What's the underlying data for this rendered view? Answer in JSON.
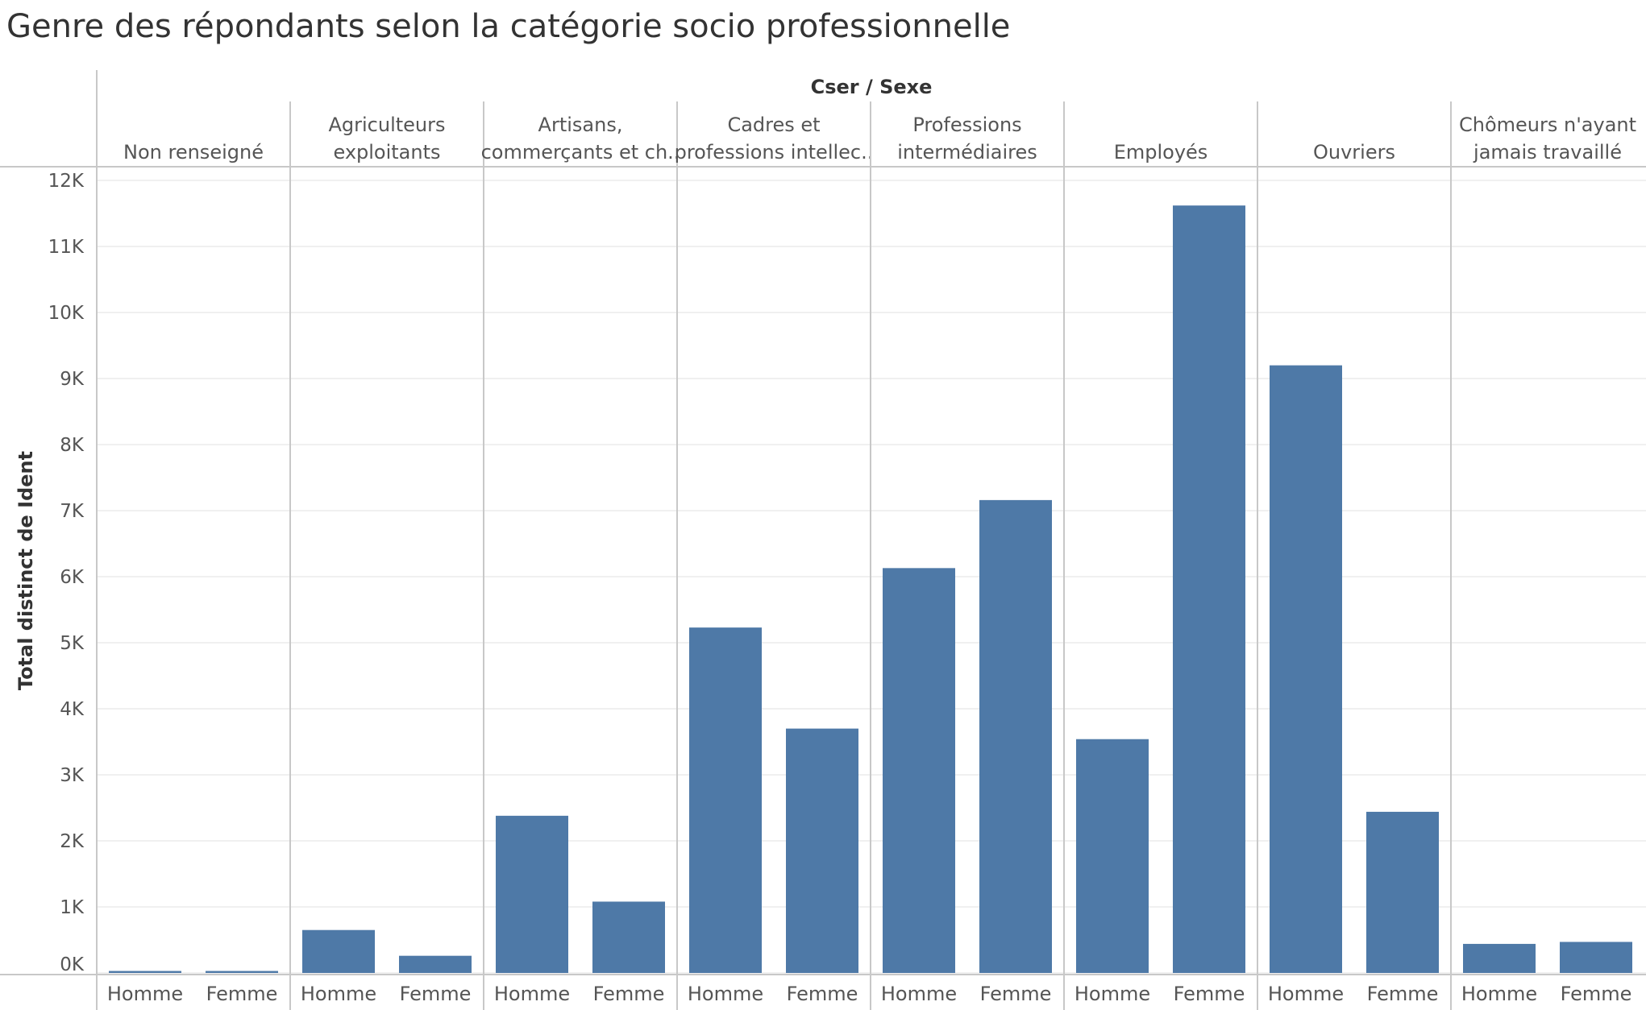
{
  "chart_data": {
    "type": "bar",
    "title": "Genre des répondants selon la catégorie socio professionnelle",
    "column_header": "Cser / Sexe",
    "ylabel": "Total distinct de Ident",
    "ylim": [
      0,
      12000
    ],
    "y_ticks": [
      {
        "value": 0,
        "label": "0K"
      },
      {
        "value": 1000,
        "label": "1K"
      },
      {
        "value": 2000,
        "label": "2K"
      },
      {
        "value": 3000,
        "label": "3K"
      },
      {
        "value": 4000,
        "label": "4K"
      },
      {
        "value": 5000,
        "label": "5K"
      },
      {
        "value": 6000,
        "label": "6K"
      },
      {
        "value": 7000,
        "label": "7K"
      },
      {
        "value": 8000,
        "label": "8K"
      },
      {
        "value": 9000,
        "label": "9K"
      },
      {
        "value": 10000,
        "label": "10K"
      },
      {
        "value": 11000,
        "label": "11K"
      },
      {
        "value": 12000,
        "label": "12K"
      }
    ],
    "sub_categories": [
      "Homme",
      "Femme"
    ],
    "bar_color": "#4e79a7",
    "grid": true,
    "groups": [
      {
        "label": [
          "Non renseigné"
        ],
        "values": [
          30,
          30
        ]
      },
      {
        "label": [
          "Agriculteurs",
          "exploitants"
        ],
        "values": [
          650,
          260
        ]
      },
      {
        "label": [
          "Artisans,",
          "commerçants et ch.."
        ],
        "values": [
          2380,
          1080
        ]
      },
      {
        "label": [
          "Cadres et",
          "professions intellec.."
        ],
        "values": [
          5230,
          3700
        ]
      },
      {
        "label": [
          "Professions",
          "intermédiaires"
        ],
        "values": [
          6130,
          7160
        ]
      },
      {
        "label": [
          "Employés"
        ],
        "values": [
          3540,
          11620
        ]
      },
      {
        "label": [
          "Ouvriers"
        ],
        "values": [
          9200,
          2440
        ]
      },
      {
        "label": [
          "Chômeurs n'ayant",
          "jamais travaillé"
        ],
        "values": [
          440,
          470
        ]
      }
    ]
  }
}
